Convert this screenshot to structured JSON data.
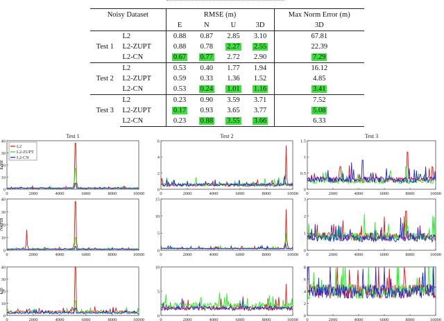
{
  "table": {
    "header": {
      "dataset": "Noisy Dataset",
      "rmse": "RMSE (m)",
      "maxnorm": "Max Norm Error (m)",
      "cols": [
        "E",
        "N",
        "U",
        "3D",
        "3D"
      ]
    },
    "groups": [
      {
        "name": "Test 1",
        "rows": [
          {
            "method": "L2",
            "vals": [
              "0.88",
              "0.87",
              "2.85",
              "3.10",
              "67.81"
            ],
            "hl": [
              false,
              false,
              false,
              false,
              false
            ]
          },
          {
            "method": "L2-ZUPT",
            "vals": [
              "0.88",
              "0.78",
              "2.27",
              "2.55",
              "22.39"
            ],
            "hl": [
              false,
              false,
              true,
              true,
              false
            ]
          },
          {
            "method": "L2-CN",
            "vals": [
              "0.67",
              "0.77",
              "2.72",
              "2.90",
              "7.29"
            ],
            "hl": [
              true,
              true,
              false,
              false,
              true
            ]
          }
        ]
      },
      {
        "name": "Test 2",
        "rows": [
          {
            "method": "L2",
            "vals": [
              "0.53",
              "0.40",
              "1.77",
              "1.94",
              "16.12"
            ],
            "hl": [
              false,
              false,
              false,
              false,
              false
            ]
          },
          {
            "method": "L2-ZUPT",
            "vals": [
              "0.59",
              "0.33",
              "1.36",
              "1.52",
              "4.85"
            ],
            "hl": [
              false,
              false,
              false,
              false,
              false
            ]
          },
          {
            "method": "L2-CN",
            "vals": [
              "0.53",
              "0.24",
              "1.01",
              "1.16",
              "3.41"
            ],
            "hl": [
              false,
              true,
              true,
              true,
              true
            ]
          }
        ]
      },
      {
        "name": "Test 3",
        "rows": [
          {
            "method": "L2",
            "vals": [
              "0.23",
              "0.90",
              "3.59",
              "3.71",
              "7.52"
            ],
            "hl": [
              false,
              false,
              false,
              false,
              false
            ]
          },
          {
            "method": "L2-ZUPT",
            "vals": [
              "0.17",
              "0.93",
              "3.65",
              "3.77",
              "5.08"
            ],
            "hl": [
              true,
              false,
              false,
              false,
              true
            ]
          },
          {
            "method": "L2-CN",
            "vals": [
              "0.23",
              "0.88",
              "3.55",
              "3.66",
              "6.33"
            ],
            "hl": [
              false,
              true,
              true,
              true,
              false
            ]
          }
        ]
      }
    ],
    "highlight_color": "#3ee03e"
  },
  "figure": {
    "col_titles": [
      "Test 1",
      "Test 2",
      "Test 3"
    ],
    "row_labels": [
      "East",
      "North",
      "Up"
    ],
    "legend": [
      "L2",
      "L2-ZUPT",
      "L2-CN"
    ],
    "colors": {
      "L2": "#ee1111",
      "L2-ZUPT": "#22ee22",
      "L2-CN": "#2222dd"
    }
  },
  "chart_data": [
    {
      "type": "line",
      "title": "Test 1",
      "ylabel": "East",
      "xlim": [
        0,
        10000
      ],
      "ylim": [
        0,
        40
      ],
      "xticks": [
        0,
        2000,
        4000,
        6000,
        8000,
        10000
      ],
      "yticks": [
        0,
        10,
        20,
        30,
        40
      ],
      "series": [
        {
          "name": "L2",
          "baseline": 1.0,
          "spikes": [
            [
              5200,
              38
            ]
          ]
        },
        {
          "name": "L2-ZUPT",
          "baseline": 1.0,
          "spikes": [
            [
              5200,
              17
            ]
          ]
        },
        {
          "name": "L2-CN",
          "baseline": 0.8,
          "spikes": [
            [
              5200,
              5
            ]
          ]
        }
      ]
    },
    {
      "type": "line",
      "title": "Test 2",
      "ylabel": "",
      "xlim": [
        0,
        10000
      ],
      "ylim": [
        0,
        6
      ],
      "xticks": [
        0,
        2000,
        4000,
        6000,
        8000,
        10000
      ],
      "yticks": [
        0,
        2,
        4,
        6
      ],
      "series": [
        {
          "name": "L2",
          "baseline": 0.5,
          "spikes": [
            [
              9500,
              5.4
            ]
          ]
        },
        {
          "name": "L2-ZUPT",
          "baseline": 0.6,
          "spikes": [
            [
              9400,
              1.8
            ]
          ]
        },
        {
          "name": "L2-CN",
          "baseline": 0.55,
          "spikes": [
            [
              9400,
              1.6
            ]
          ]
        }
      ]
    },
    {
      "type": "line",
      "title": "Test 3",
      "ylabel": "",
      "xlim": [
        0,
        10000
      ],
      "ylim": [
        0,
        1.5
      ],
      "xticks": [
        0,
        2000,
        4000,
        6000,
        8000,
        10000
      ],
      "yticks": [
        0,
        0.5,
        1,
        1.5
      ],
      "series": [
        {
          "name": "L2",
          "baseline": 0.3,
          "spikes": [
            [
              7800,
              1.15
            ]
          ]
        },
        {
          "name": "L2-ZUPT",
          "baseline": 0.25,
          "spikes": [
            [
              7700,
              0.7
            ]
          ]
        },
        {
          "name": "L2-CN",
          "baseline": 0.3,
          "spikes": [
            [
              4300,
              0.9
            ]
          ]
        }
      ]
    },
    {
      "type": "line",
      "title": "",
      "ylabel": "North",
      "xlim": [
        0,
        10000
      ],
      "ylim": [
        0,
        40
      ],
      "xticks": [
        0,
        2000,
        4000,
        6000,
        8000,
        10000
      ],
      "yticks": [
        0,
        10,
        20,
        30,
        40
      ],
      "series": [
        {
          "name": "L2",
          "baseline": 1.0,
          "spikes": [
            [
              1500,
              16
            ],
            [
              5200,
              38
            ]
          ]
        },
        {
          "name": "L2-ZUPT",
          "baseline": 1.0,
          "spikes": [
            [
              5200,
              10
            ]
          ]
        },
        {
          "name": "L2-CN",
          "baseline": 0.8,
          "spikes": [
            [
              5200,
              3
            ]
          ]
        }
      ]
    },
    {
      "type": "line",
      "title": "",
      "ylabel": "",
      "xlim": [
        0,
        10000
      ],
      "ylim": [
        0,
        15
      ],
      "xticks": [
        0,
        2000,
        4000,
        6000,
        8000,
        10000
      ],
      "yticks": [
        0,
        5,
        10,
        15
      ],
      "series": [
        {
          "name": "L2",
          "baseline": 0.5,
          "spikes": [
            [
              9500,
              12
            ]
          ]
        },
        {
          "name": "L2-ZUPT",
          "baseline": 0.5,
          "spikes": [
            [
              9500,
              5
            ]
          ]
        },
        {
          "name": "L2-CN",
          "baseline": 0.5,
          "spikes": [
            [
              9450,
              2
            ]
          ]
        }
      ]
    },
    {
      "type": "line",
      "title": "",
      "ylabel": "",
      "xlim": [
        0,
        10000
      ],
      "ylim": [
        0,
        3
      ],
      "xticks": [
        0,
        2000,
        4000,
        6000,
        8000,
        10000
      ],
      "yticks": [
        0,
        1,
        2,
        3
      ],
      "series": [
        {
          "name": "L2",
          "baseline": 0.8,
          "spikes": [
            [
              7700,
              2.3
            ]
          ]
        },
        {
          "name": "L2-ZUPT",
          "baseline": 0.8,
          "spikes": [
            [
              7800,
              1.4
            ]
          ]
        },
        {
          "name": "L2-CN",
          "baseline": 0.7,
          "spikes": [
            [
              7800,
              1.1
            ]
          ]
        }
      ]
    },
    {
      "type": "line",
      "title": "",
      "ylabel": "Up",
      "xlim": [
        0,
        10000
      ],
      "ylim": [
        0,
        40
      ],
      "xticks": [
        0,
        2000,
        4000,
        6000,
        8000,
        10000
      ],
      "yticks": [
        0,
        10,
        20,
        30,
        40
      ],
      "series": [
        {
          "name": "L2",
          "baseline": 3.0,
          "spikes": [
            [
              5200,
              40
            ]
          ]
        },
        {
          "name": "L2-ZUPT",
          "baseline": 2.5,
          "spikes": [
            [
              5200,
              12
            ]
          ]
        },
        {
          "name": "L2-CN",
          "baseline": 2.0,
          "spikes": [
            [
              5200,
              6
            ]
          ]
        }
      ]
    },
    {
      "type": "line",
      "title": "",
      "ylabel": "",
      "xlim": [
        0,
        10000
      ],
      "ylim": [
        0,
        10
      ],
      "xticks": [
        0,
        2000,
        4000,
        6000,
        8000,
        10000
      ],
      "yticks": [
        0,
        5,
        10
      ],
      "series": [
        {
          "name": "L2",
          "baseline": 1.5,
          "spikes": [
            [
              9500,
              6.5
            ]
          ]
        },
        {
          "name": "L2-ZUPT",
          "baseline": 2.0,
          "spikes": [
            [
              3000,
              3.5
            ]
          ]
        },
        {
          "name": "L2-CN",
          "baseline": 1.5,
          "spikes": [
            [
              6000,
              2.5
            ]
          ]
        }
      ]
    },
    {
      "type": "line",
      "title": "",
      "ylabel": "",
      "xlim": [
        0,
        10000
      ],
      "ylim": [
        0,
        8
      ],
      "xticks": [
        0,
        2000,
        4000,
        6000,
        8000,
        10000
      ],
      "yticks": [
        0,
        2,
        4,
        6,
        8
      ],
      "series": [
        {
          "name": "L2",
          "baseline": 4.0,
          "spikes": [
            [
              7600,
              7
            ]
          ]
        },
        {
          "name": "L2-ZUPT",
          "baseline": 4.0,
          "spikes": [
            [
              3000,
              4.5
            ]
          ]
        },
        {
          "name": "L2-CN",
          "baseline": 4.0,
          "spikes": [
            [
              6500,
              6
            ]
          ]
        }
      ]
    }
  ]
}
